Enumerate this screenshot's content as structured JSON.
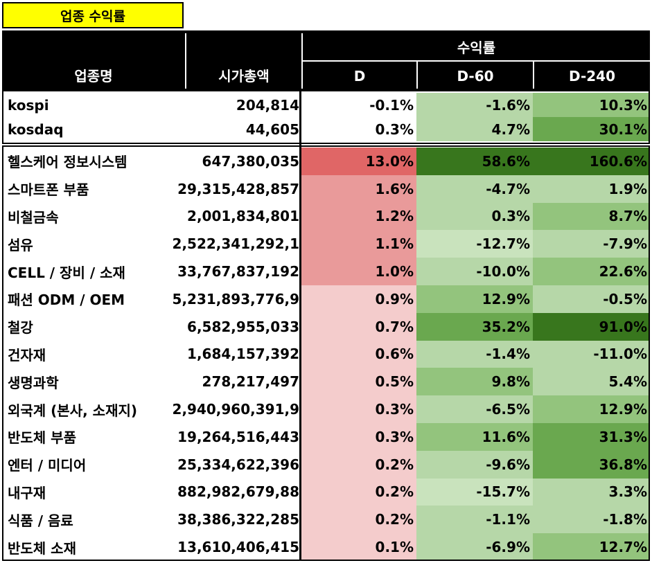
{
  "title": "업종 수익률",
  "headers": {
    "name": "업종명",
    "market_cap": "시가총액",
    "returns_group": "수익률",
    "d": "D",
    "d60": "D-60",
    "d240": "D-240"
  },
  "colors": {
    "title_bg": "#ffff00",
    "header_bg": "#000000",
    "red_strong": "#e06666",
    "red_mid": "#e99a9a",
    "red_light": "#f4cccc",
    "green_darkest": "#38761d",
    "green_dark": "#6aa84f",
    "green_mid": "#93c47d",
    "green_light": "#b6d7a8",
    "green_pale": "#c9e3bd"
  },
  "index_rows": [
    {
      "name": "kospi",
      "market_cap": "204,814",
      "d": "-0.1%",
      "d60": "-1.6%",
      "d240": "10.3%"
    },
    {
      "name": "kosdaq",
      "market_cap": "44,605",
      "d": "0.3%",
      "d60": "4.7%",
      "d240": "30.1%"
    }
  ],
  "sector_rows": [
    {
      "name": "헬스케어 정보시스템",
      "market_cap": "647,380,035",
      "d": "13.0%",
      "d60": "58.6%",
      "d240": "160.6%"
    },
    {
      "name": "스마트폰 부품",
      "market_cap": "29,315,428,857",
      "d": "1.6%",
      "d60": "-4.7%",
      "d240": "1.9%"
    },
    {
      "name": "비철금속",
      "market_cap": "2,001,834,801",
      "d": "1.2%",
      "d60": "0.3%",
      "d240": "8.7%"
    },
    {
      "name": "섬유",
      "market_cap": "2,522,341,292,1",
      "d": "1.1%",
      "d60": "-12.7%",
      "d240": "-7.9%"
    },
    {
      "name": "CELL / 장비 / 소재",
      "market_cap": "33,767,837,192",
      "d": "1.0%",
      "d60": "-10.0%",
      "d240": "22.6%"
    },
    {
      "name": "패션 ODM / OEM",
      "market_cap": "5,231,893,776,9",
      "d": "0.9%",
      "d60": "12.9%",
      "d240": "-0.5%"
    },
    {
      "name": "철강",
      "market_cap": "6,582,955,033",
      "d": "0.7%",
      "d60": "35.2%",
      "d240": "91.0%"
    },
    {
      "name": "건자재",
      "market_cap": "1,684,157,392",
      "d": "0.6%",
      "d60": "-1.4%",
      "d240": "-11.0%"
    },
    {
      "name": "생명과학",
      "market_cap": "278,217,497",
      "d": "0.5%",
      "d60": "9.8%",
      "d240": "5.4%"
    },
    {
      "name": "외국계 (본사, 소재지)",
      "market_cap": "2,940,960,391,9",
      "d": "0.3%",
      "d60": "-6.5%",
      "d240": "12.9%"
    },
    {
      "name": "반도체 부품",
      "market_cap": "19,264,516,443",
      "d": "0.3%",
      "d60": "11.6%",
      "d240": "31.3%"
    },
    {
      "name": "엔터 / 미디어",
      "market_cap": "25,334,622,396",
      "d": "0.2%",
      "d60": "-9.6%",
      "d240": "36.8%"
    },
    {
      "name": "내구재",
      "market_cap": "882,982,679,88",
      "d": "0.2%",
      "d60": "-15.7%",
      "d240": "3.3%"
    },
    {
      "name": "식품 / 음료",
      "market_cap": "38,386,322,285",
      "d": "0.2%",
      "d60": "-1.1%",
      "d240": "-1.8%"
    },
    {
      "name": "반도체 소재",
      "market_cap": "13,610,406,415",
      "d": "0.1%",
      "d60": "-6.9%",
      "d240": "12.7%"
    }
  ]
}
